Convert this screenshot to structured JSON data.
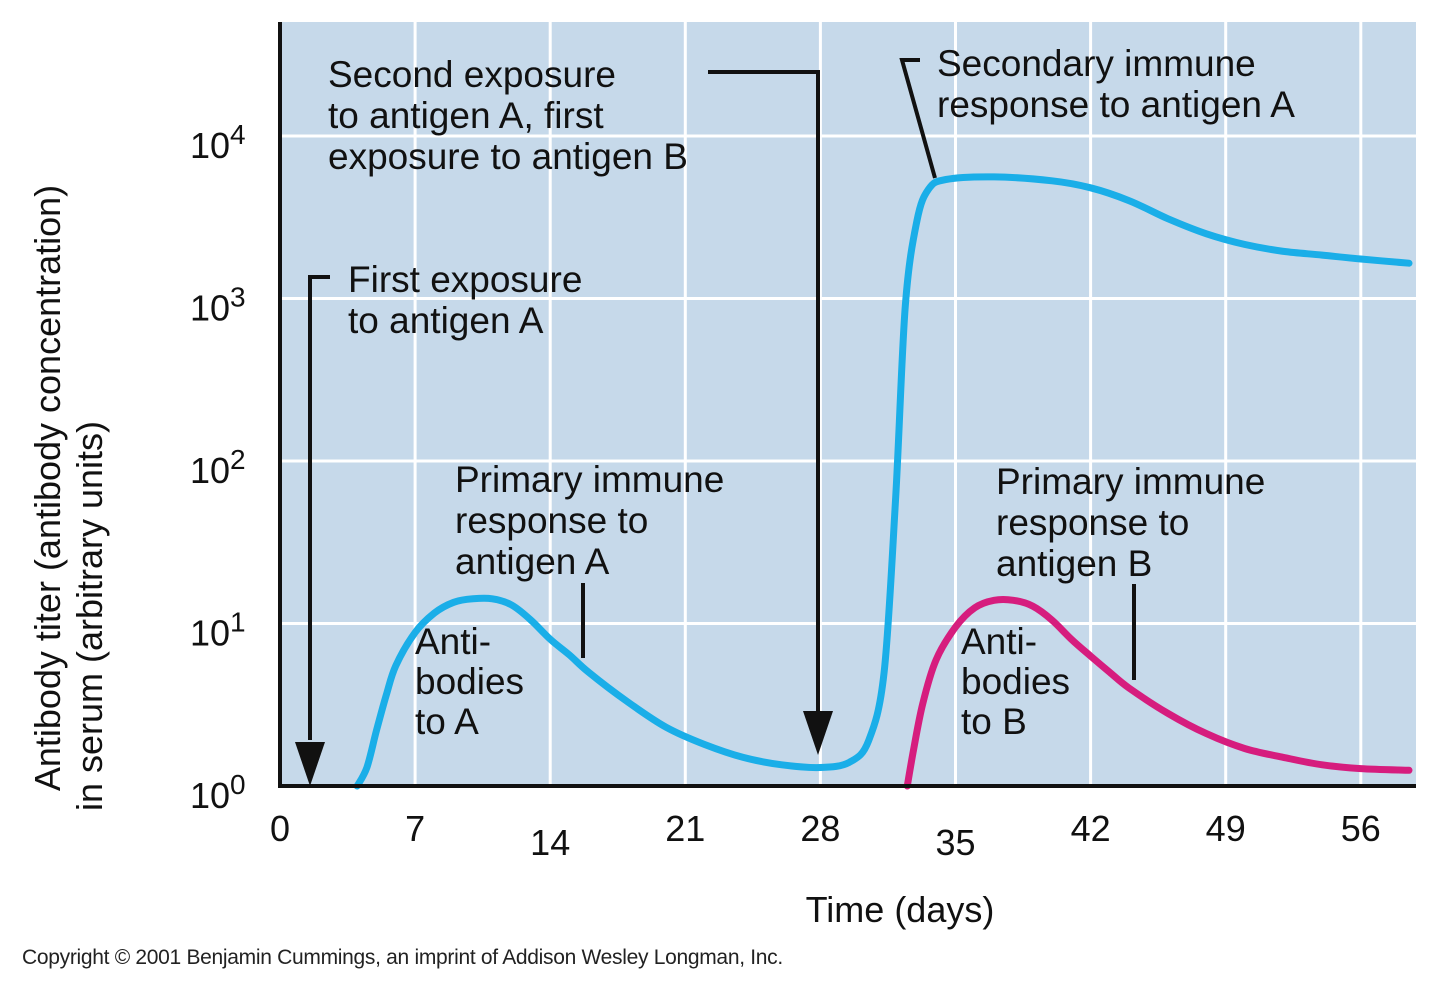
{
  "chart_data": {
    "type": "line",
    "xlabel": "Time (days)",
    "ylabel_lines": [
      "Antibody titer (antibody concentration)",
      "in serum (arbitrary units)"
    ],
    "x_ticks": [
      0,
      7,
      14,
      21,
      28,
      35,
      42,
      49,
      56
    ],
    "y_scale": "log",
    "y_ticks": [
      {
        "base": "10",
        "exp": "0",
        "value": 1
      },
      {
        "base": "10",
        "exp": "1",
        "value": 10
      },
      {
        "base": "10",
        "exp": "2",
        "value": 100
      },
      {
        "base": "10",
        "exp": "3",
        "value": 1000
      },
      {
        "base": "10",
        "exp": "4",
        "value": 10000
      }
    ],
    "xlim": [
      0,
      58.5
    ],
    "ylim": [
      1,
      50000
    ],
    "grid": true,
    "background": "#c6d9ea",
    "series": [
      {
        "key": "antibodies_A",
        "color": "#1aaee8",
        "points": [
          [
            4,
            1
          ],
          [
            4.5,
            1.3
          ],
          [
            5,
            2.2
          ],
          [
            5.5,
            3.6
          ],
          [
            6,
            5.5
          ],
          [
            7,
            8.8
          ],
          [
            8,
            11.6
          ],
          [
            9,
            13.5
          ],
          [
            10,
            14.2
          ],
          [
            11,
            14.2
          ],
          [
            12,
            13
          ],
          [
            13,
            10.5
          ],
          [
            14,
            8
          ],
          [
            15,
            6.4
          ],
          [
            16,
            5
          ],
          [
            18,
            3.3
          ],
          [
            20,
            2.3
          ],
          [
            22,
            1.8
          ],
          [
            24,
            1.5
          ],
          [
            26,
            1.35
          ],
          [
            28,
            1.3
          ],
          [
            29.5,
            1.4
          ],
          [
            30.5,
            1.9
          ],
          [
            31.3,
            5
          ],
          [
            31.9,
            60
          ],
          [
            32.4,
            900
          ],
          [
            33,
            3000
          ],
          [
            33.6,
            4700
          ],
          [
            34.5,
            5400
          ],
          [
            37,
            5600
          ],
          [
            40,
            5300
          ],
          [
            42,
            4800
          ],
          [
            44,
            4000
          ],
          [
            46,
            3100
          ],
          [
            48,
            2500
          ],
          [
            50,
            2150
          ],
          [
            52,
            1950
          ],
          [
            54,
            1850
          ],
          [
            56,
            1750
          ],
          [
            58.5,
            1650
          ]
        ]
      },
      {
        "key": "antibodies_B",
        "color": "#d61d7e",
        "points": [
          [
            32.5,
            1
          ],
          [
            32.8,
            1.6
          ],
          [
            33.3,
            3.2
          ],
          [
            34,
            6
          ],
          [
            35,
            9.5
          ],
          [
            36,
            12.5
          ],
          [
            37,
            13.9
          ],
          [
            38,
            13.9
          ],
          [
            39,
            12.8
          ],
          [
            40,
            10.5
          ],
          [
            41,
            8
          ],
          [
            42,
            6.3
          ],
          [
            43,
            5
          ],
          [
            44,
            4
          ],
          [
            46,
            2.8
          ],
          [
            48,
            2.1
          ],
          [
            50,
            1.7
          ],
          [
            52,
            1.5
          ],
          [
            54,
            1.35
          ],
          [
            56,
            1.28
          ],
          [
            58.5,
            1.25
          ]
        ]
      }
    ],
    "annotations": {
      "first_exposure": [
        "First exposure",
        "to antigen A"
      ],
      "second_exposure": [
        "Second exposure",
        "to antigen A, first",
        "exposure to antigen B"
      ],
      "secondary_response": [
        "Secondary immune",
        "response to antigen A"
      ],
      "primary_a": [
        "Primary immune",
        "response to",
        "antigen A"
      ],
      "primary_b": [
        "Primary immune",
        "response to",
        "antigen B"
      ],
      "antibodies_a": [
        "Anti-",
        "bodies",
        "to A"
      ],
      "antibodies_b": [
        "Anti-",
        "bodies",
        "to B"
      ]
    }
  },
  "copyright": "Copyright © 2001 Benjamin Cummings, an imprint of Addison Wesley Longman, Inc."
}
